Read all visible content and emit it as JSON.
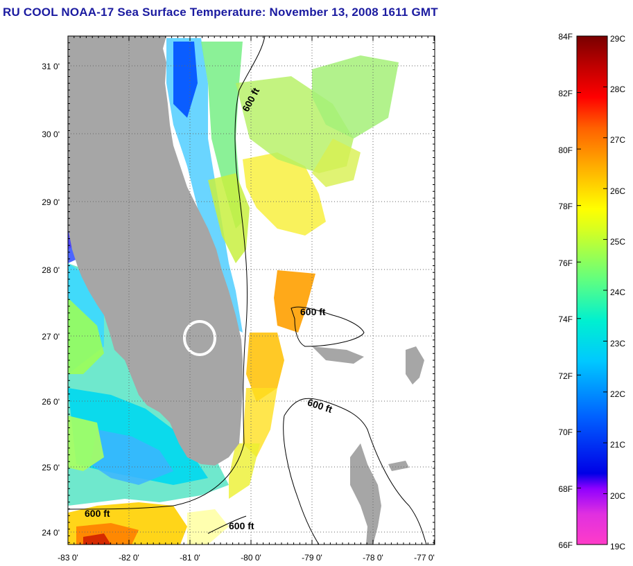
{
  "title": "RU COOL  NOAA-17  Sea Surface Temperature:  November 13, 2008 1611 GMT",
  "map": {
    "lon_labels": [
      "-83 0'",
      "-82 0'",
      "-81 0'",
      "-80 0'",
      "-79 0'",
      "-78 0'",
      "-77 0'"
    ],
    "lat_labels": [
      "31 0'",
      "30 0'",
      "29 0'",
      "28 0'",
      "27 0'",
      "26 0'",
      "25 0'",
      "24 0'"
    ],
    "contour_labels": [
      "600 ft",
      "600 ft",
      "600 ft",
      "600 ft",
      "600 ft"
    ],
    "colors": {
      "land": "#a6a6a6",
      "ocean": "#ffffff",
      "grid": "#666666"
    }
  },
  "colorbar": {
    "fahrenheit_labels": [
      "84F",
      "82F",
      "80F",
      "78F",
      "76F",
      "74F",
      "72F",
      "70F",
      "68F",
      "66F"
    ],
    "celsius_labels": [
      "29C",
      "28C",
      "27C",
      "26C",
      "25C",
      "24C",
      "23C",
      "22C",
      "21C",
      "20C",
      "19C"
    ],
    "colors": [
      "#ff3cc8",
      "#b400ff",
      "#0000e6",
      "#0078ff",
      "#00e6ff",
      "#78ff78",
      "#ffff00",
      "#ff9600",
      "#ff0000",
      "#820000"
    ]
  }
}
